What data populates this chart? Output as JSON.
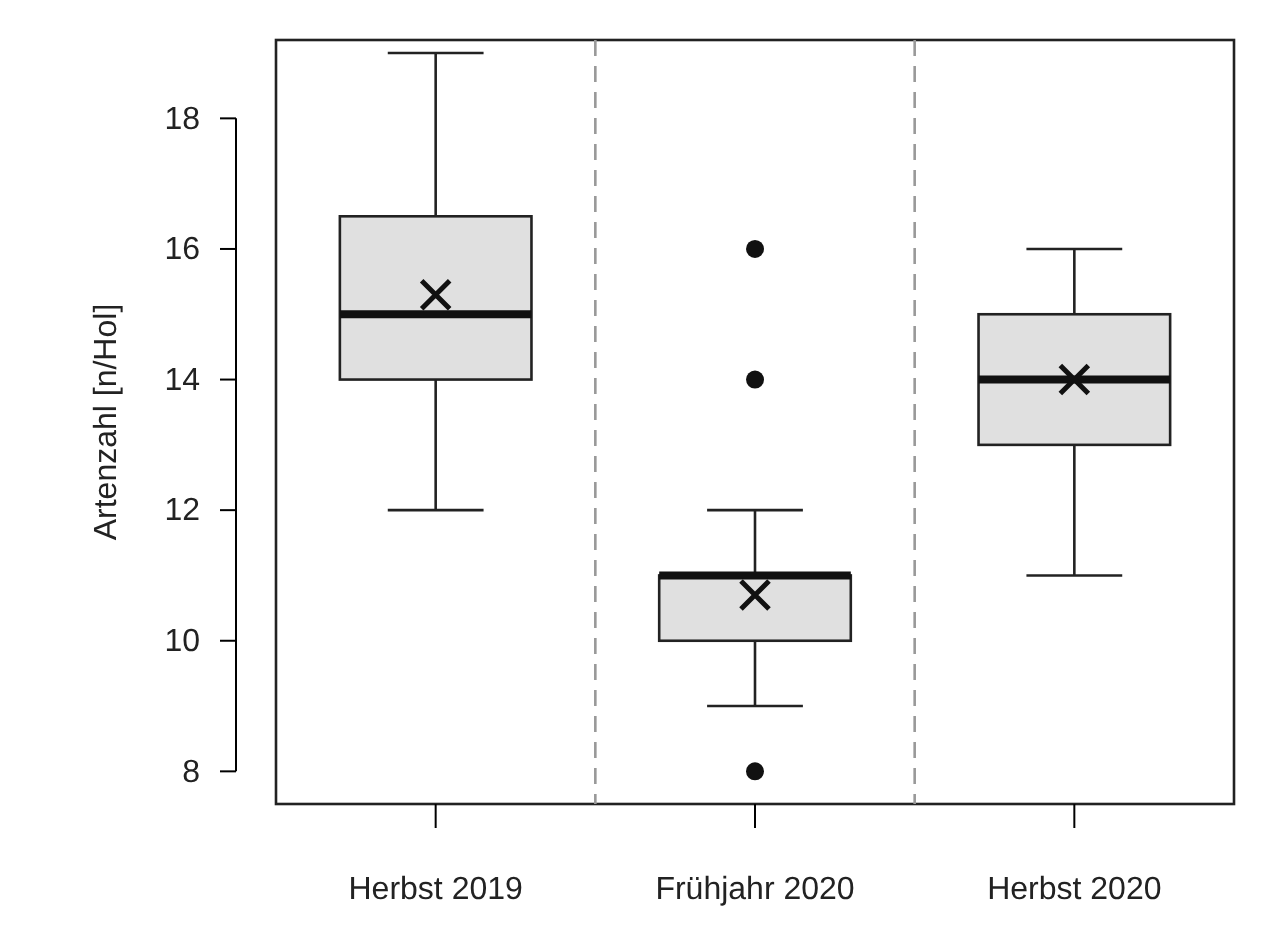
{
  "chart_data": {
    "type": "box",
    "ylabel": "Artenzahl [n/Hol]",
    "categories": [
      "Herbst 2019",
      "Frühjahr 2020",
      "Herbst 2020"
    ],
    "boxes": [
      {
        "low": 12,
        "q1": 14,
        "median": 15,
        "q3": 16.5,
        "high": 19,
        "mean": 15.3
      },
      {
        "low": 9,
        "q1": 10,
        "median": 11,
        "q3": 11,
        "high": 12,
        "mean": 10.7,
        "outliers": [
          8,
          14,
          16
        ]
      },
      {
        "low": 11,
        "q1": 13,
        "median": 14,
        "q3": 15,
        "high": 16,
        "mean": 14
      }
    ],
    "color": "#e0e0e0",
    "ylim": [
      7.5,
      19.2
    ],
    "yticks": [
      8,
      10,
      12,
      14,
      16,
      18
    ],
    "grid": false
  }
}
